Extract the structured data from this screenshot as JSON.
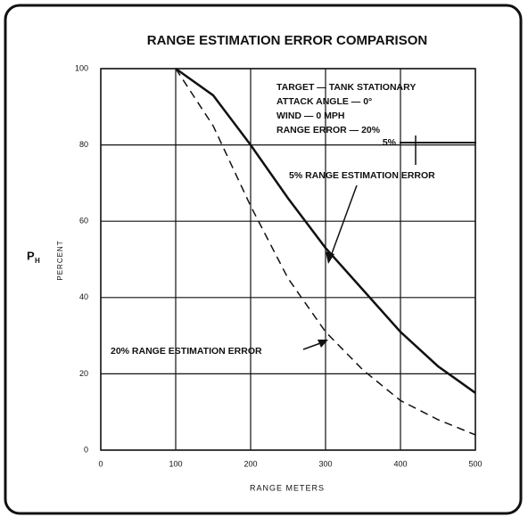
{
  "chart_data": {
    "type": "line",
    "title": "RANGE ESTIMATION ERROR COMPARISON",
    "xlabel": "RANGE METERS",
    "ylabel": "P",
    "ylabel_subscript": "H",
    "ylabel_unit": "PERCENT",
    "xlim": [
      0,
      500
    ],
    "ylim": [
      0,
      100
    ],
    "xticks": [
      0,
      100,
      200,
      300,
      400,
      500
    ],
    "yticks": [
      0,
      20,
      40,
      60,
      80,
      100
    ],
    "grid": true,
    "series": [
      {
        "name": "5% RANGE ESTIMATION ERROR",
        "color": "#111111",
        "dash": "solid",
        "x": [
          100,
          150,
          200,
          250,
          300,
          350,
          400,
          450,
          500
        ],
        "values": [
          100,
          93,
          80,
          66,
          53,
          42,
          31,
          22,
          15
        ]
      },
      {
        "name": "20% RANGE ESTIMATION ERROR",
        "color": "#111111",
        "dash": "dashed",
        "x": [
          100,
          150,
          200,
          250,
          300,
          350,
          400,
          450,
          500
        ],
        "values": [
          100,
          85,
          64,
          45,
          31,
          21,
          13,
          8,
          4
        ]
      }
    ],
    "annotations": [
      "TARGET — TANK STATIONARY",
      "ATTACK ANGLE — 0°",
      "WIND — 0 MPH",
      "RANGE ERROR — 20%",
      "5%"
    ]
  }
}
